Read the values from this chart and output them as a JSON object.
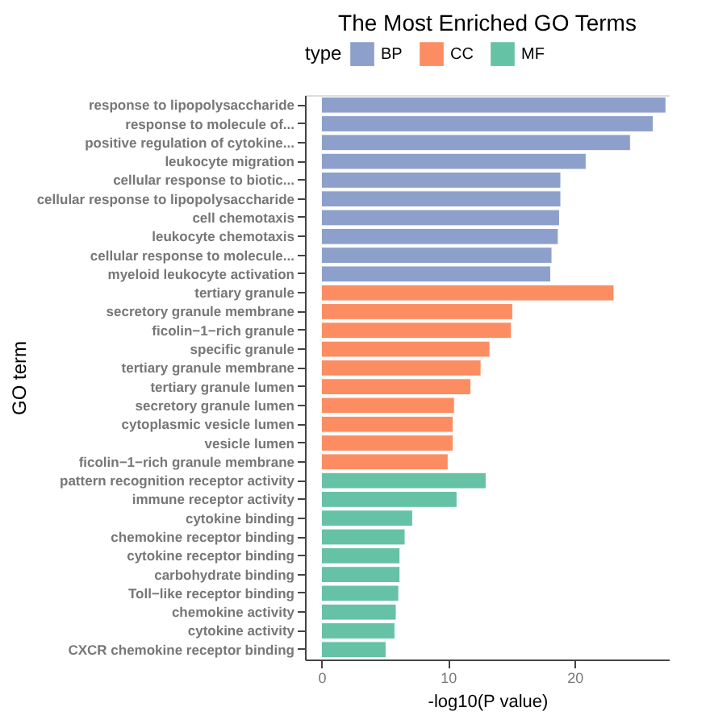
{
  "chart_data": {
    "type": "bar",
    "orientation": "horizontal",
    "title": "The Most Enriched GO Terms",
    "xlabel": "-log10(P value)",
    "ylabel": "GO term",
    "legend_title": "type",
    "legend": "top",
    "categories": [
      "response to lipopolysaccharide",
      "response to molecule of...",
      "positive regulation of cytokine...",
      "leukocyte migration",
      "cellular response to biotic...",
      "cellular response to lipopolysaccharide",
      "cell chemotaxis",
      "leukocyte chemotaxis",
      "cellular response to molecule...",
      "myeloid leukocyte activation",
      "tertiary granule",
      "secretory granule membrane",
      "ficolin−1−rich granule",
      "specific granule",
      "tertiary granule membrane",
      "tertiary granule lumen",
      "secretory granule lumen",
      "cytoplasmic vesicle lumen",
      "vesicle lumen",
      "ficolin−1−rich granule membrane",
      "pattern recognition receptor activity",
      "immune receptor activity",
      "cytokine binding",
      "chemokine receptor binding",
      "cytokine receptor binding",
      "carbohydrate binding",
      "Toll−like receptor binding",
      "chemokine activity",
      "cytokine activity",
      "CXCR chemokine receptor binding"
    ],
    "series": [
      {
        "name": "BP",
        "color": "#8da0cb",
        "values": [
          27.2,
          26.2,
          24.4,
          20.9,
          18.9,
          18.9,
          18.8,
          18.7,
          18.2,
          18.1,
          null,
          null,
          null,
          null,
          null,
          null,
          null,
          null,
          null,
          null,
          null,
          null,
          null,
          null,
          null,
          null,
          null,
          null,
          null,
          null
        ]
      },
      {
        "name": "CC",
        "color": "#fc8d62",
        "values": [
          null,
          null,
          null,
          null,
          null,
          null,
          null,
          null,
          null,
          null,
          23.1,
          15.1,
          15.0,
          13.3,
          12.6,
          11.8,
          10.5,
          10.4,
          10.4,
          10.0,
          null,
          null,
          null,
          null,
          null,
          null,
          null,
          null,
          null,
          null
        ]
      },
      {
        "name": "MF",
        "color": "#66c2a5",
        "values": [
          null,
          null,
          null,
          null,
          null,
          null,
          null,
          null,
          null,
          null,
          null,
          null,
          null,
          null,
          null,
          null,
          null,
          null,
          null,
          null,
          13.0,
          10.7,
          7.2,
          6.6,
          6.2,
          6.2,
          6.1,
          5.9,
          5.8,
          5.1
        ]
      }
    ],
    "xlim": [
      -1.3,
      27.5
    ],
    "xticks": [
      0,
      10,
      20
    ],
    "grid": false
  }
}
